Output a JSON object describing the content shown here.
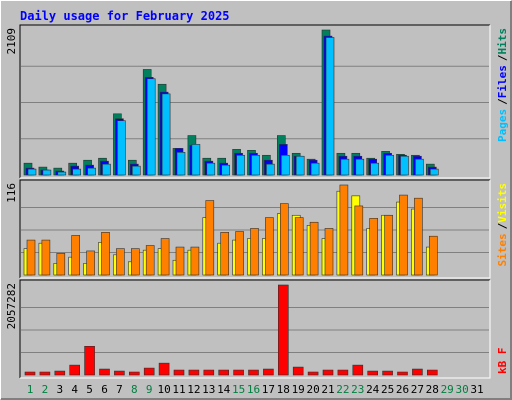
{
  "chart_data": [
    {
      "type": "bar",
      "title": "Daily usage for February 2025",
      "ylim": [
        0,
        2109
      ],
      "yticks": [
        2109
      ],
      "separator": "/",
      "series": [
        {
          "name": "Hits",
          "color": "#00805c",
          "values": [
            172,
            115,
            100,
            172,
            215,
            244,
            890,
            215,
            1535,
            1320,
            387,
            574,
            244,
            244,
            373,
            359,
            287,
            574,
            316,
            230,
            2109,
            316,
            316,
            244,
            344,
            301,
            287,
            158,
            null,
            null,
            null
          ]
        },
        {
          "name": "Files",
          "color": "#0000ff",
          "values": [
            100,
            72,
            57,
            129,
            143,
            201,
            818,
            158,
            1420,
            1205,
            387,
            430,
            201,
            172,
            316,
            316,
            215,
            445,
            273,
            215,
            2020,
            273,
            273,
            230,
            316,
            287,
            273,
            115,
            null,
            null,
            null
          ]
        },
        {
          "name": "Pages",
          "color": "#00c0ff",
          "values": [
            86,
            72,
            43,
            86,
            100,
            158,
            790,
            129,
            1400,
            1180,
            330,
            445,
            172,
            143,
            287,
            287,
            158,
            287,
            273,
            172,
            2000,
            230,
            230,
            172,
            287,
            273,
            230,
            86,
            null,
            null,
            null
          ]
        }
      ]
    },
    {
      "type": "bar",
      "ylim": [
        0,
        116
      ],
      "yticks": [
        116
      ],
      "separator": "/",
      "series": [
        {
          "name": "Visits",
          "color": "#ffff00",
          "values": [
            34,
            41,
            15,
            23,
            15,
            42,
            26,
            17,
            32,
            34,
            19,
            32,
            74,
            41,
            45,
            47,
            47,
            79,
            77,
            64,
            47,
            108,
            102,
            60,
            77,
            94,
            85,
            36,
            null,
            null,
            null
          ]
        },
        {
          "name": "Sites",
          "color": "#ff8000",
          "values": [
            45,
            45,
            28,
            51,
            31,
            55,
            34,
            34,
            38,
            47,
            36,
            36,
            96,
            55,
            56,
            60,
            74,
            92,
            74,
            68,
            60,
            116,
            89,
            73,
            77,
            103,
            99,
            50,
            null,
            null,
            null
          ]
        }
      ]
    },
    {
      "type": "bar",
      "ylim": [
        0,
        2057282
      ],
      "yticks": [
        2057282
      ],
      "categories": [
        "1",
        "2",
        "3",
        "4",
        "5",
        "6",
        "7",
        "8",
        "9",
        "10",
        "11",
        "12",
        "13",
        "14",
        "15",
        "16",
        "17",
        "18",
        "19",
        "20",
        "21",
        "22",
        "23",
        "24",
        "25",
        "26",
        "27",
        "28",
        "29",
        "30",
        "31"
      ],
      "category_colors": [
        "#008040",
        "#008040",
        "#000000",
        "#000000",
        "#000000",
        "#000000",
        "#000000",
        "#008040",
        "#008040",
        "#000000",
        "#000000",
        "#000000",
        "#000000",
        "#000000",
        "#008040",
        "#008040",
        "#000000",
        "#000000",
        "#000000",
        "#000000",
        "#000000",
        "#008040",
        "#008040",
        "#000000",
        "#000000",
        "#000000",
        "#000000",
        "#000000",
        "#008040",
        "#008040",
        "#000000"
      ],
      "series": [
        {
          "name": "kB F",
          "color": "#ff0000",
          "values": [
            68000,
            68000,
            90000,
            226000,
            656000,
            136000,
            90000,
            68000,
            158000,
            271000,
            113000,
            113000,
            113000,
            113000,
            113000,
            113000,
            136000,
            2057282,
            181000,
            68000,
            113000,
            113000,
            226000,
            90000,
            90000,
            68000,
            136000,
            113000,
            null,
            null,
            null
          ]
        }
      ]
    }
  ]
}
